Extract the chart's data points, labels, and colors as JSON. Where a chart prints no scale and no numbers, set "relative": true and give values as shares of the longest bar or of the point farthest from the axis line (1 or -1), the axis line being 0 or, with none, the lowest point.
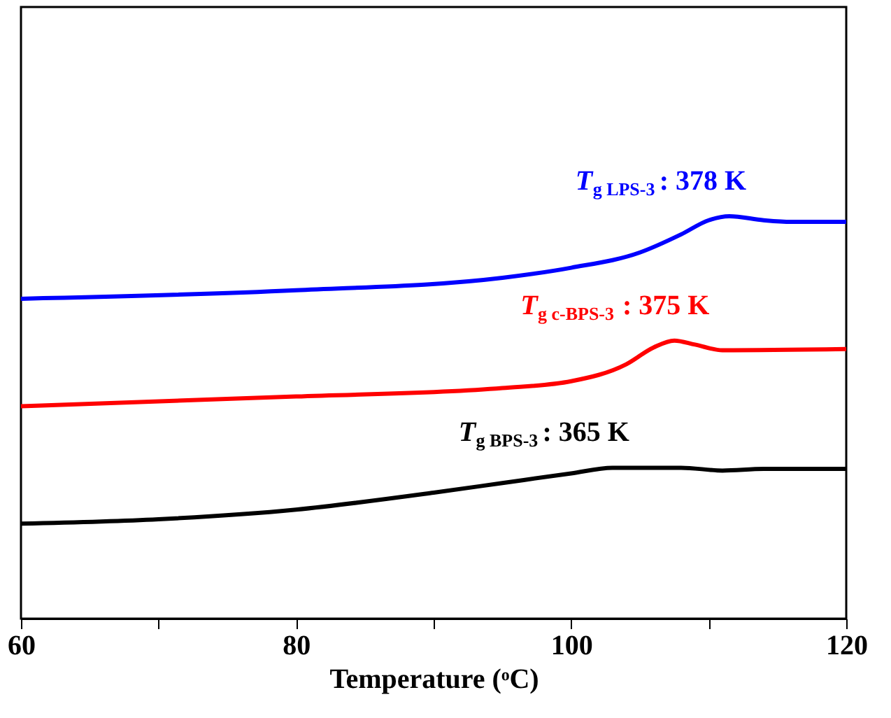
{
  "chart_data": {
    "type": "line",
    "relative": true,
    "xlabel": "Temperature (ᵒC)",
    "xlim": [
      60,
      120
    ],
    "xticks": [
      60,
      {
        "value": 70,
        "label": null
      },
      80,
      {
        "value": 90,
        "label": null
      },
      100,
      {
        "value": 110,
        "label": null
      },
      120
    ],
    "grid": false,
    "legend": false,
    "marker": "none",
    "line_style": "solid",
    "series": [
      {
        "name": "T$_{g LPS-3}$: 378 K",
        "color": "#0000ff",
        "x": [
          60,
          80,
          95,
          100,
          105,
          108,
          110,
          111.5,
          114,
          116,
          120
        ],
        "values": [
          0.795,
          0.816,
          0.847,
          0.872,
          0.91,
          0.955,
          0.99,
          1,
          0.99,
          0.986,
          0.986
        ]
      },
      {
        "name": "T$_{g c-BPS-3}$: 375 K",
        "color": "#ff0000",
        "x": [
          60,
          80,
          95,
          100,
          104,
          106,
          107.5,
          109,
          111,
          120
        ],
        "values": [
          0.528,
          0.552,
          0.573,
          0.59,
          0.632,
          0.674,
          0.691,
          0.681,
          0.667,
          0.67
        ]
      },
      {
        "name": "T$_{g BPS-3}$: 365 K",
        "color": "#000000",
        "x": [
          60,
          70,
          80,
          90,
          95,
          100,
          103,
          108,
          111,
          114,
          120
        ],
        "values": [
          0.236,
          0.247,
          0.271,
          0.313,
          0.337,
          0.361,
          0.375,
          0.375,
          0.368,
          0.372,
          0.372
        ]
      }
    ]
  }
}
